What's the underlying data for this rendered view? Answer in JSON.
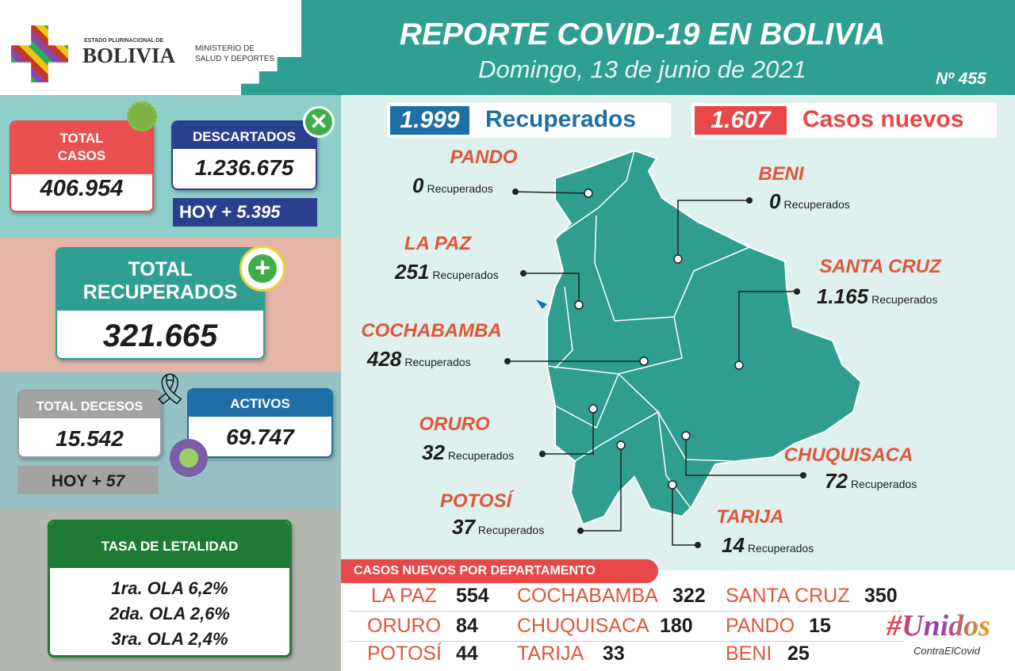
{
  "header": {
    "state": "ESTADO PLURINACIONAL DE",
    "country": "BOLIVIA",
    "ministry": [
      "MINISTERIO DE",
      "SALUD Y DEPORTES"
    ],
    "title": "REPORTE COVID-19 EN BOLIVIA",
    "date": "Domingo, 13 de junio de 2021",
    "number": "Nº 455"
  },
  "summary": {
    "recovered": {
      "value": "1.999",
      "label": "Recuperados"
    },
    "new_cases": {
      "value": "1.607",
      "label": "Casos nuevos"
    }
  },
  "totals": {
    "cases": {
      "label": [
        "TOTAL",
        "CASOS"
      ],
      "value": "406.954"
    },
    "discarded": {
      "label": "DESCARTADOS",
      "value": "1.236.675",
      "today_label": "HOY +",
      "today_value": "5.395"
    },
    "recovered": {
      "label": [
        "TOTAL",
        "RECUPERADOS"
      ],
      "value": "321.665"
    },
    "deaths": {
      "label": "TOTAL DECESOS",
      "value": "15.542",
      "today_label": "HOY +",
      "today_value": "57"
    },
    "active": {
      "label": "ACTIVOS",
      "value": "69.747"
    },
    "lethality": {
      "title": "TASA DE LETALIDAD",
      "lines": [
        "1ra. OLA 6,2%",
        "2da. OLA 2,6%",
        "3ra. OLA 2,4%"
      ]
    }
  },
  "map": {
    "departments": [
      {
        "name": "PANDO",
        "value": "0",
        "unit": "Recuperados"
      },
      {
        "name": "BENI",
        "value": "0",
        "unit": "Recuperados"
      },
      {
        "name": "LA PAZ",
        "value": "251",
        "unit": "Recuperados"
      },
      {
        "name": "SANTA CRUZ",
        "value": "1.165",
        "unit": "Recuperados"
      },
      {
        "name": "COCHABAMBA",
        "value": "428",
        "unit": "Recuperados"
      },
      {
        "name": "ORURO",
        "value": "32",
        "unit": "Recuperados"
      },
      {
        "name": "POTOSÍ",
        "value": "37",
        "unit": "Recuperados"
      },
      {
        "name": "CHUQUISACA",
        "value": "72",
        "unit": "Recuperados"
      },
      {
        "name": "TARIJA",
        "value": "14",
        "unit": "Recuperados"
      }
    ]
  },
  "new_cases_by_department": {
    "title": "CASOS NUEVOS POR DEPARTAMENTO",
    "rows": [
      [
        {
          "name": "LA PAZ",
          "value": "554"
        },
        {
          "name": "COCHABAMBA",
          "value": "322"
        },
        {
          "name": "SANTA CRUZ",
          "value": "350"
        }
      ],
      [
        {
          "name": "ORURO",
          "value": "84"
        },
        {
          "name": "CHUQUISACA",
          "value": "180"
        },
        {
          "name": "PANDO",
          "value": "15"
        }
      ],
      [
        {
          "name": "POTOSÍ",
          "value": "44"
        },
        {
          "name": "TARIJA",
          "value": "33"
        },
        {
          "name": "BENI",
          "value": "25"
        }
      ]
    ]
  },
  "campaign": {
    "title": "#Unidos",
    "subtitle": "ContraElCovid"
  }
}
